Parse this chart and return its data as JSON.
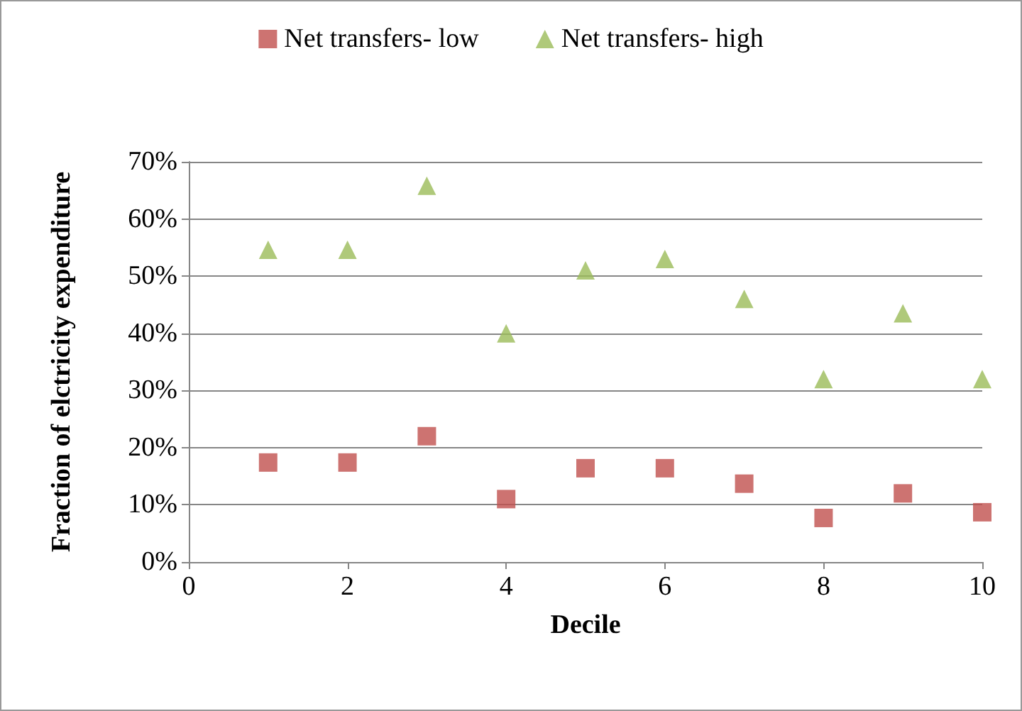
{
  "chart_data": {
    "type": "scatter",
    "xlabel": "Decile",
    "ylabel": "Fraction of elctricity expenditure",
    "x": [
      1,
      2,
      3,
      4,
      5,
      6,
      7,
      8,
      9,
      10
    ],
    "series": [
      {
        "name": "Net transfers- low",
        "color": "#c0504d",
        "marker": "square",
        "values": [
          17.4,
          17.4,
          22,
          11,
          16.4,
          16.4,
          13.7,
          7.7,
          12,
          8.7
        ]
      },
      {
        "name": "Net transfers- high",
        "color": "#9bbb59",
        "marker": "triangle",
        "values": [
          54.6,
          54.6,
          65.8,
          40,
          51,
          53,
          46,
          32,
          43.5,
          32
        ]
      }
    ],
    "xlim": [
      0,
      10
    ],
    "xticks": [
      0,
      2,
      4,
      6,
      8,
      10
    ],
    "ylim": [
      0,
      70
    ],
    "yticks": [
      {
        "value": 0,
        "label": "0%"
      },
      {
        "value": 10,
        "label": "10%"
      },
      {
        "value": 20,
        "label": "20%"
      },
      {
        "value": 30,
        "label": "30%"
      },
      {
        "value": 40,
        "label": "40%"
      },
      {
        "value": 50,
        "label": "50%"
      },
      {
        "value": 60,
        "label": "60%"
      },
      {
        "value": 70,
        "label": "70%"
      }
    ],
    "grid": "y",
    "legend": "top"
  }
}
